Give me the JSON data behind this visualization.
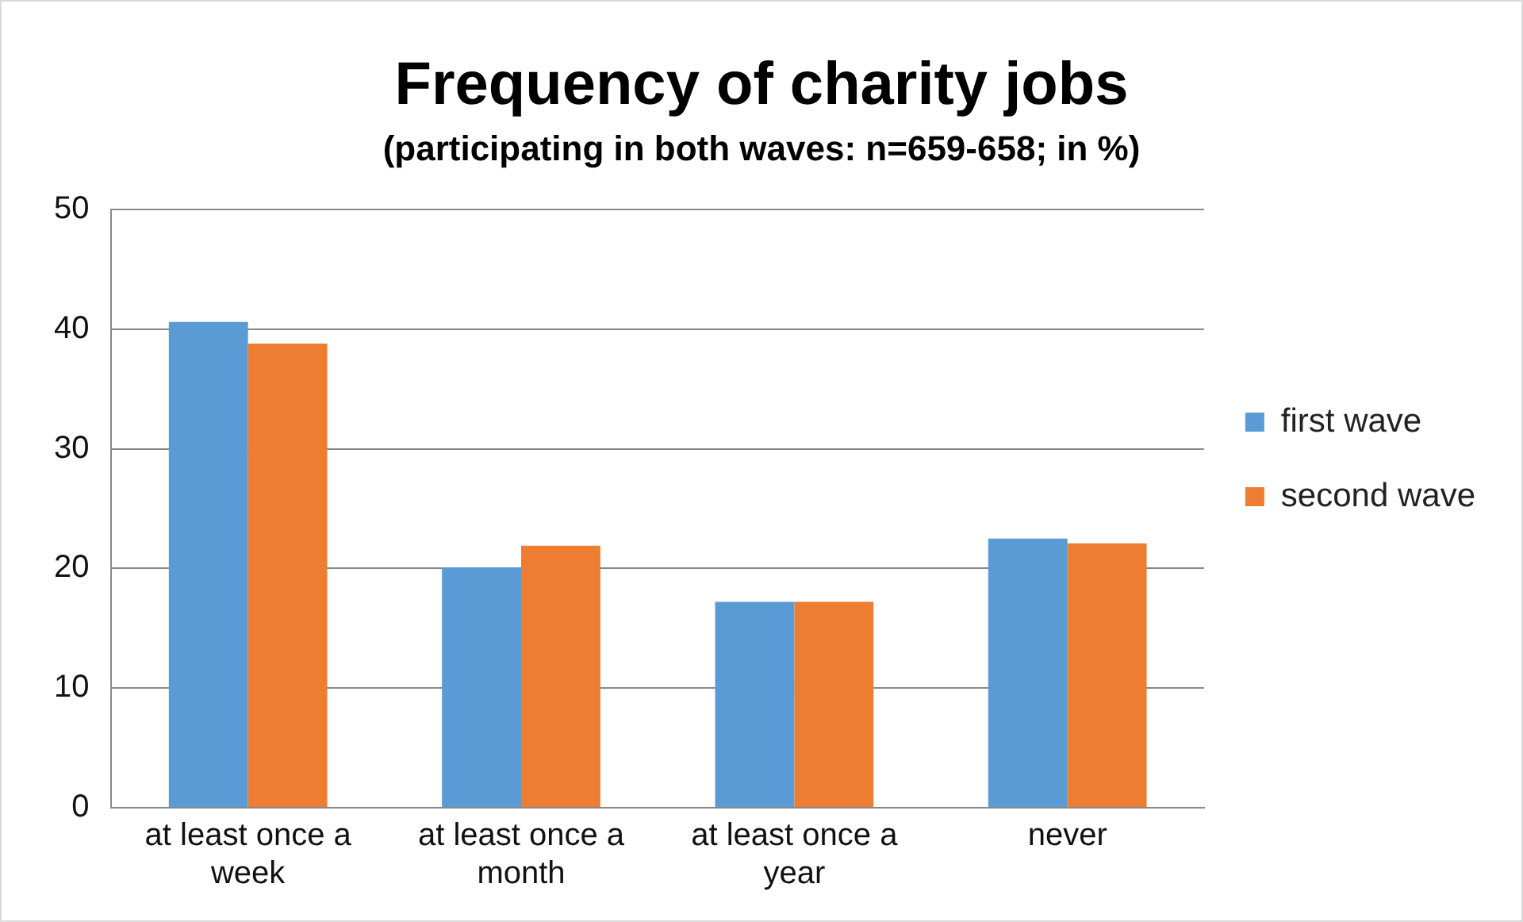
{
  "chart_data": {
    "type": "bar",
    "title": "Frequency of charity jobs",
    "subtitle": "(participating in both waves: n=659-658; in %)",
    "categories": [
      "at least once a week",
      "at least once a month",
      "at least once a year",
      "never"
    ],
    "series": [
      {
        "name": "first wave",
        "color": "#5b9bd5",
        "values": [
          40.6,
          20.1,
          17.2,
          22.5
        ]
      },
      {
        "name": "second wave",
        "color": "#ed7d31",
        "values": [
          38.8,
          21.9,
          17.2,
          22.1
        ]
      }
    ],
    "ylim": [
      0,
      50
    ],
    "yticks": [
      0,
      10,
      20,
      30,
      40,
      50
    ],
    "grid": "y",
    "legend": "right"
  }
}
